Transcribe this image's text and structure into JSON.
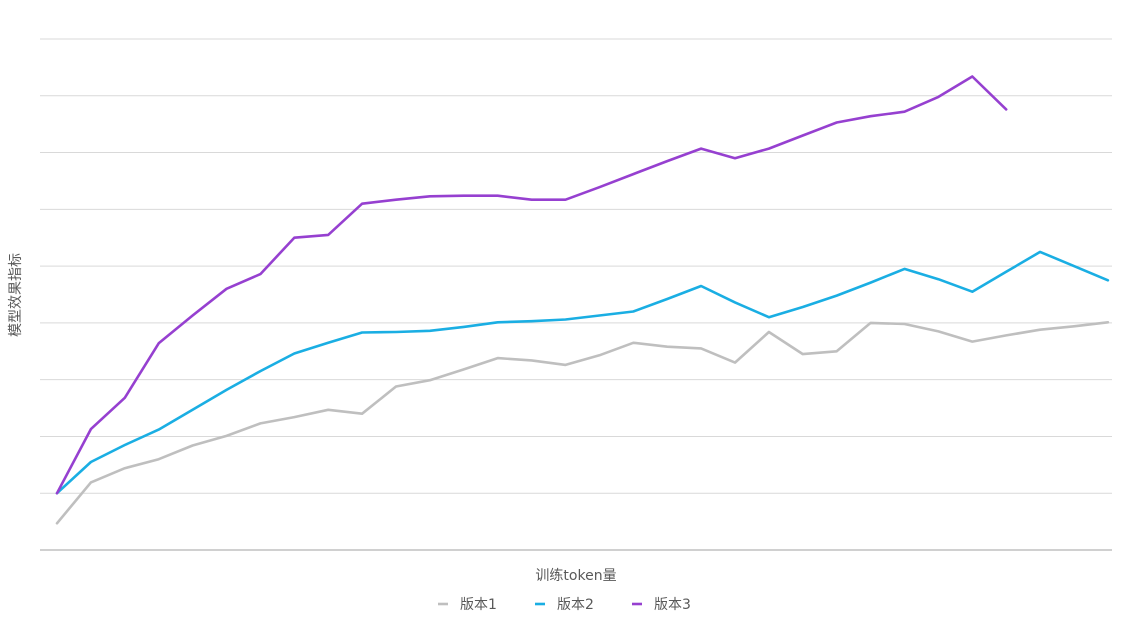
{
  "chart_data": {
    "type": "line",
    "title": "",
    "xlabel": "训练token量",
    "ylabel": "模型效果指标",
    "grid": true,
    "legend_position": "bottom",
    "ylim": [
      0,
      9
    ],
    "x": [
      1,
      2,
      3,
      4,
      5,
      6,
      7,
      8,
      9,
      10,
      11,
      12,
      13,
      14,
      15,
      16,
      17,
      18,
      19,
      20,
      21,
      22,
      23,
      24,
      25,
      26,
      27,
      28,
      29,
      30,
      31,
      32
    ],
    "series": [
      {
        "name": "版本1",
        "color": "#bfbfbf",
        "values": [
          0.47,
          1.19,
          1.44,
          1.6,
          1.84,
          2.01,
          2.23,
          2.34,
          2.47,
          2.4,
          2.88,
          2.99,
          3.18,
          3.38,
          3.34,
          3.26,
          3.43,
          3.65,
          3.58,
          3.55,
          3.3,
          3.84,
          3.45,
          3.5,
          4.0,
          3.98,
          3.85,
          3.67,
          3.78,
          3.88,
          3.94,
          4.01
        ]
      },
      {
        "name": "版本2",
        "color": "#1aaee3",
        "values": [
          1.0,
          1.55,
          1.85,
          2.12,
          2.47,
          2.82,
          3.15,
          3.46,
          3.65,
          3.83,
          3.84,
          3.86,
          3.93,
          4.01,
          4.03,
          4.06,
          4.13,
          4.2,
          4.42,
          4.65,
          4.36,
          4.1,
          4.28,
          4.48,
          4.71,
          4.95,
          4.77,
          4.55,
          4.9,
          5.25,
          5.0,
          4.75
        ]
      },
      {
        "name": "版本3",
        "color": "#9640d0",
        "values": [
          1.0,
          2.13,
          2.68,
          3.64,
          4.13,
          4.6,
          4.86,
          5.5,
          5.55,
          6.1,
          6.17,
          6.23,
          6.24,
          6.24,
          6.17,
          6.17,
          6.39,
          6.62,
          6.85,
          7.07,
          6.9,
          7.07,
          7.3,
          7.53,
          7.64,
          7.72,
          7.98,
          8.34,
          7.76,
          null,
          null,
          null
        ]
      }
    ]
  }
}
